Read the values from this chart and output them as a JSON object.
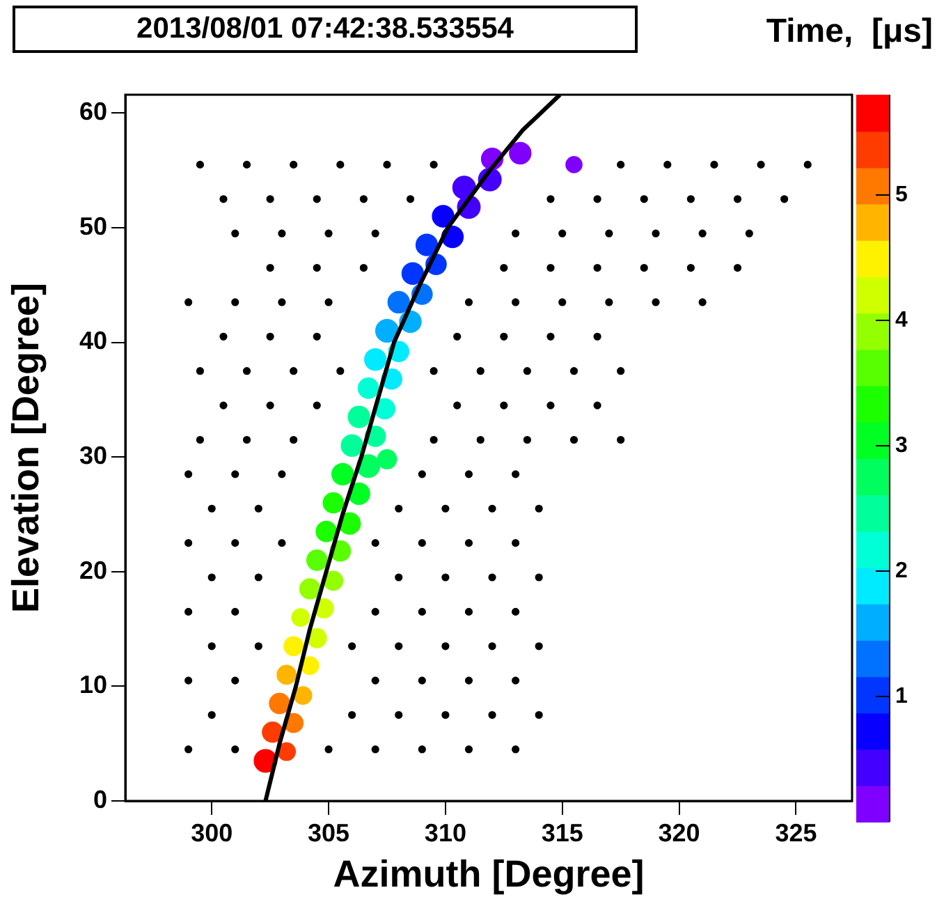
{
  "chart_data": {
    "type": "scatter",
    "title": "2013/08/01 07:42:38.533554",
    "xlabel": "Azimuth [Degree]",
    "ylabel": "Elevation [Degree]",
    "clabel": "Time,  [μs]",
    "xlim": [
      296.3,
      327.4
    ],
    "xticks": [
      300,
      305,
      310,
      315,
      320,
      325
    ],
    "ylim": [
      0,
      61.6
    ],
    "yticks": [
      0,
      10,
      20,
      30,
      40,
      50,
      60
    ],
    "clim": [
      0,
      5.8
    ],
    "cticks": [
      1,
      2,
      3,
      4,
      5
    ],
    "series": [
      {
        "color": "#000000",
        "marker": "circle",
        "x": [
          299,
          301,
          305,
          307,
          309,
          311,
          313,
          300,
          306,
          308,
          310,
          312,
          314,
          299,
          301,
          307,
          309,
          311,
          313,
          300,
          302,
          306,
          308,
          310,
          312,
          314,
          299,
          301,
          307,
          309,
          311,
          313,
          300,
          302,
          308,
          310,
          312,
          314,
          299,
          301,
          303,
          307,
          309,
          311,
          313,
          300,
          302,
          308,
          310,
          312,
          314,
          299,
          301,
          303,
          309,
          311,
          313,
          299.5,
          301.5,
          303.5,
          309.5,
          311.5,
          313.5,
          315.5,
          317.5,
          300.5,
          302.5,
          304.5,
          310.5,
          312.5,
          314.5,
          316.5,
          299.5,
          301.5,
          303.5,
          305.5,
          309.5,
          311.5,
          313.5,
          315.5,
          317.5,
          300.5,
          302.5,
          304.5,
          310.5,
          312.5,
          314.5,
          316.5,
          299,
          301,
          303,
          305,
          311,
          313,
          315,
          317,
          319,
          321,
          302.5,
          304.5,
          306.5,
          312.5,
          314.5,
          316.5,
          318.5,
          320.5,
          322.5,
          301,
          303,
          305,
          307,
          313,
          315,
          317,
          319,
          321,
          323,
          300.5,
          302.5,
          304.5,
          306.5,
          308.5,
          314.5,
          316.5,
          318.5,
          320.5,
          322.5,
          324.5,
          299.5,
          301.5,
          303.5,
          305.5,
          307.5,
          309.5,
          317.5,
          319.5,
          321.5,
          323.5,
          325.5
        ],
        "values": [
          4.5,
          4.5,
          4.5,
          4.5,
          4.5,
          4.5,
          4.5,
          7.5,
          7.5,
          7.5,
          7.5,
          7.5,
          7.5,
          10.5,
          10.5,
          10.5,
          10.5,
          10.5,
          10.5,
          13.5,
          13.5,
          13.5,
          13.5,
          13.5,
          13.5,
          13.5,
          16.5,
          16.5,
          16.5,
          16.5,
          16.5,
          16.5,
          19.5,
          19.5,
          19.5,
          19.5,
          19.5,
          19.5,
          22.5,
          22.5,
          22.5,
          22.5,
          22.5,
          22.5,
          22.5,
          25.5,
          25.5,
          25.5,
          25.5,
          25.5,
          25.5,
          28.5,
          28.5,
          28.5,
          28.5,
          28.5,
          28.5,
          31.5,
          31.5,
          31.5,
          31.5,
          31.5,
          31.5,
          31.5,
          31.5,
          34.5,
          34.5,
          34.5,
          34.5,
          34.5,
          34.5,
          34.5,
          37.5,
          37.5,
          37.5,
          37.5,
          37.5,
          37.5,
          37.5,
          37.5,
          37.5,
          40.5,
          40.5,
          40.5,
          40.5,
          40.5,
          40.5,
          40.5,
          43.5,
          43.5,
          43.5,
          43.5,
          43.5,
          43.5,
          43.5,
          43.5,
          43.5,
          43.5,
          46.5,
          46.5,
          46.5,
          46.5,
          46.5,
          46.5,
          46.5,
          46.5,
          46.5,
          49.5,
          49.5,
          49.5,
          49.5,
          49.5,
          49.5,
          49.5,
          49.5,
          49.5,
          49.5,
          52.5,
          52.5,
          52.5,
          52.5,
          52.5,
          52.5,
          52.5,
          52.5,
          52.5,
          52.5,
          52.5,
          55.5,
          55.5,
          55.5,
          55.5,
          55.5,
          55.5,
          55.5,
          55.5,
          55.5,
          55.5,
          55.5
        ]
      },
      {
        "type": "bubble",
        "marker": "circle",
        "colors": [
          "#ff0000",
          "#ff3c00",
          "#ff3c00",
          "#ff7900",
          "#ff7900",
          "#ffb500",
          "#ffb500",
          "#fff100",
          "#fff100",
          "#d0ff00",
          "#d0ff00",
          "#d0ff00",
          "#94ff00",
          "#94ff00",
          "#57ff00",
          "#57ff00",
          "#1bff00",
          "#1bff00",
          "#1bff00",
          "#00ff22",
          "#00ff22",
          "#00ff5e",
          "#00ff5e",
          "#00ff9a",
          "#00ff9a",
          "#00ff9a",
          "#00ffd7",
          "#00ffd7",
          "#00ebff",
          "#00ebff",
          "#00ebff",
          "#00afff",
          "#00afff",
          "#0072ff",
          "#0072ff",
          "#0036ff",
          "#0036ff",
          "#0036ff",
          "#0700ff",
          "#0700ff",
          "#4300ff",
          "#4300ff",
          "#4300ff",
          "#8000ff",
          "#8000ff",
          "#8000ff"
        ],
        "x": [
          302.3,
          303.2,
          302.6,
          303.5,
          302.9,
          303.9,
          303.2,
          304.2,
          303.5,
          304.5,
          303.8,
          304.8,
          304.2,
          305.2,
          304.5,
          305.5,
          304.9,
          305.9,
          305.2,
          306.3,
          305.6,
          306.7,
          307.5,
          306.0,
          307.0,
          306.3,
          307.4,
          306.7,
          307.7,
          307.0,
          308.0,
          307.5,
          308.5,
          308.0,
          309.0,
          308.6,
          309.6,
          309.2,
          310.3,
          309.9,
          311.0,
          310.8,
          311.9,
          312.0,
          313.2,
          315.5
        ],
        "values": [
          3.5,
          4.3,
          6,
          6.8,
          8.5,
          9.2,
          11,
          11.8,
          13.5,
          14.2,
          16,
          16.8,
          18.5,
          19.2,
          21,
          21.8,
          23.5,
          24.2,
          26,
          26.8,
          28.5,
          29.2,
          29.8,
          31,
          31.8,
          33.5,
          34.2,
          36,
          36.8,
          38.5,
          39.2,
          41,
          41.8,
          43.5,
          44.2,
          46,
          46.8,
          48.5,
          49.2,
          51,
          51.8,
          53.5,
          54.2,
          56,
          56.5,
          55.5
        ],
        "sizes": [
          1.0,
          0.6,
          0.8,
          0.7,
          0.8,
          0.6,
          0.7,
          0.6,
          0.7,
          0.7,
          0.6,
          0.7,
          0.8,
          0.7,
          0.8,
          0.8,
          0.8,
          0.9,
          0.8,
          0.9,
          0.9,
          1.0,
          0.7,
          0.9,
          0.8,
          0.9,
          0.8,
          0.8,
          0.8,
          0.9,
          0.8,
          1.0,
          0.9,
          0.9,
          0.8,
          0.9,
          0.8,
          0.9,
          0.9,
          0.9,
          1.0,
          1.0,
          1.0,
          0.9,
          0.9,
          0.5
        ],
        "cvalues": [
          5.6,
          5.5,
          5.4,
          5.2,
          5.0,
          4.9,
          4.7,
          4.6,
          4.5,
          4.3,
          4.2,
          4.1,
          3.9,
          3.8,
          3.7,
          3.5,
          3.4,
          3.3,
          3.2,
          3.0,
          2.9,
          2.8,
          2.7,
          2.6,
          2.5,
          2.4,
          2.2,
          2.1,
          2.0,
          1.9,
          1.8,
          1.7,
          1.6,
          1.4,
          1.3,
          1.1,
          1.0,
          0.9,
          0.8,
          0.7,
          0.5,
          0.4,
          0.3,
          0.1,
          0.15,
          0.1
        ]
      },
      {
        "type": "line",
        "color": "#000000",
        "x": [
          302.3,
          302.9,
          303.6,
          304.2,
          304.9,
          305.6,
          306.4,
          307.1,
          307.8,
          308.9,
          310.1,
          311.9,
          313.3,
          314.9
        ],
        "values": [
          0,
          5,
          10,
          15,
          20,
          25,
          30,
          35,
          40,
          45,
          50,
          55,
          58.5,
          61.6
        ]
      }
    ]
  }
}
